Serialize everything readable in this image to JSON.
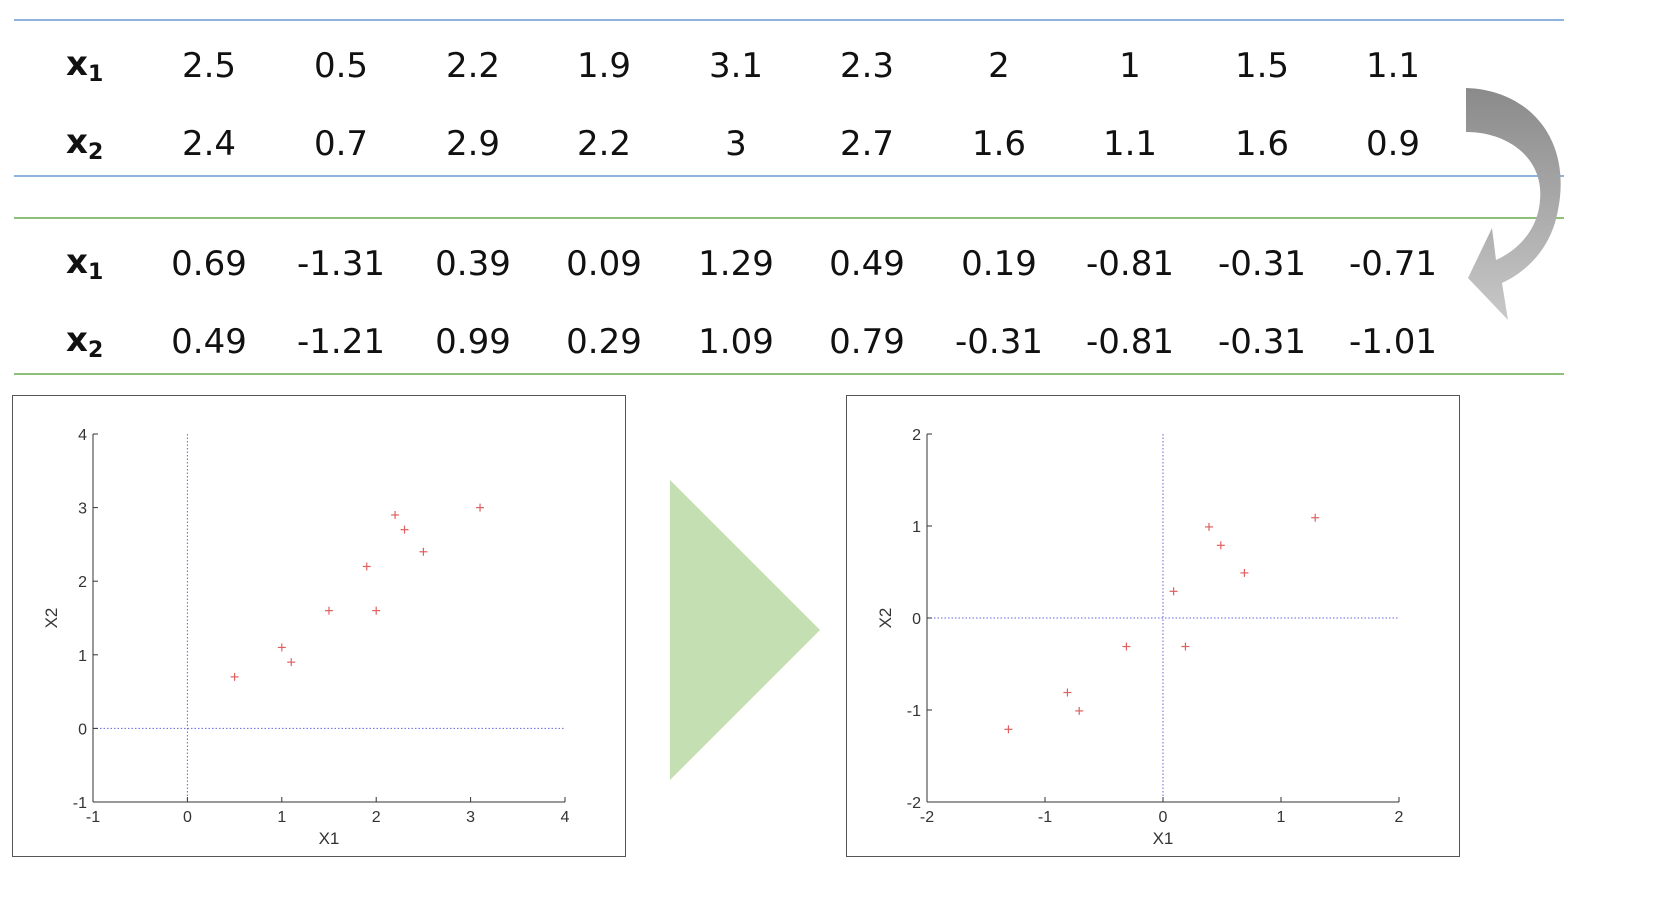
{
  "original_table": {
    "rows": [
      {
        "label": "x",
        "sub": "1",
        "values": [
          "2.5",
          "0.5",
          "2.2",
          "1.9",
          "3.1",
          "2.3",
          "2",
          "1",
          "1.5",
          "1.1"
        ]
      },
      {
        "label": "x",
        "sub": "2",
        "values": [
          "2.4",
          "0.7",
          "2.9",
          "2.2",
          "3",
          "2.7",
          "1.6",
          "1.1",
          "1.6",
          "0.9"
        ]
      }
    ]
  },
  "centered_table": {
    "rows": [
      {
        "label": "x",
        "sub": "1",
        "values": [
          "0.69",
          "-1.31",
          "0.39",
          "0.09",
          "1.29",
          "0.49",
          "0.19",
          "-0.81",
          "-0.31",
          "-0.71"
        ]
      },
      {
        "label": "x",
        "sub": "2",
        "values": [
          "0.49",
          "-1.21",
          "0.99",
          "0.29",
          "1.09",
          "0.79",
          "-0.31",
          "-0.81",
          "-0.31",
          "-1.01"
        ]
      }
    ]
  },
  "colors": {
    "original_rule": "#8fb4dc",
    "centered_rule": "#8fc07a",
    "marker": "#e06060",
    "axis_dotted": "#6666dd",
    "triangle": "#c4e0b2",
    "curved_arrow": "#9a9a9a"
  },
  "icons": {
    "curved_arrow": "curved-arrow-down-icon",
    "triangle": "triangle-right-icon"
  },
  "chart_data": [
    {
      "type": "scatter",
      "title": "",
      "xlabel": "X1",
      "ylabel": "X2",
      "xlim": [
        -1,
        4
      ],
      "ylim": [
        -1,
        4
      ],
      "xticks": [
        -1,
        0,
        1,
        2,
        3,
        4
      ],
      "yticks": [
        -1,
        0,
        1,
        2,
        3,
        4
      ],
      "marker": "+",
      "reference_lines": {
        "x": 0,
        "y": 0
      },
      "x": [
        2.5,
        0.5,
        2.2,
        1.9,
        3.1,
        2.3,
        2,
        1,
        1.5,
        1.1
      ],
      "y": [
        2.4,
        0.7,
        2.9,
        2.2,
        3,
        2.7,
        1.6,
        1.1,
        1.6,
        0.9
      ]
    },
    {
      "type": "scatter",
      "title": "",
      "xlabel": "X1",
      "ylabel": "X2",
      "xlim": [
        -2,
        2
      ],
      "ylim": [
        -2,
        2
      ],
      "xticks": [
        -2,
        -1,
        0,
        1,
        2
      ],
      "yticks": [
        -2,
        -1,
        0,
        1,
        2
      ],
      "marker": "+",
      "reference_lines": {
        "x": 0,
        "y": 0
      },
      "x": [
        0.69,
        -1.31,
        0.39,
        0.09,
        1.29,
        0.49,
        0.19,
        -0.81,
        -0.31,
        -0.71
      ],
      "y": [
        0.49,
        -1.21,
        0.99,
        0.29,
        1.09,
        0.79,
        -0.31,
        -0.81,
        -0.31,
        -1.01
      ]
    }
  ]
}
